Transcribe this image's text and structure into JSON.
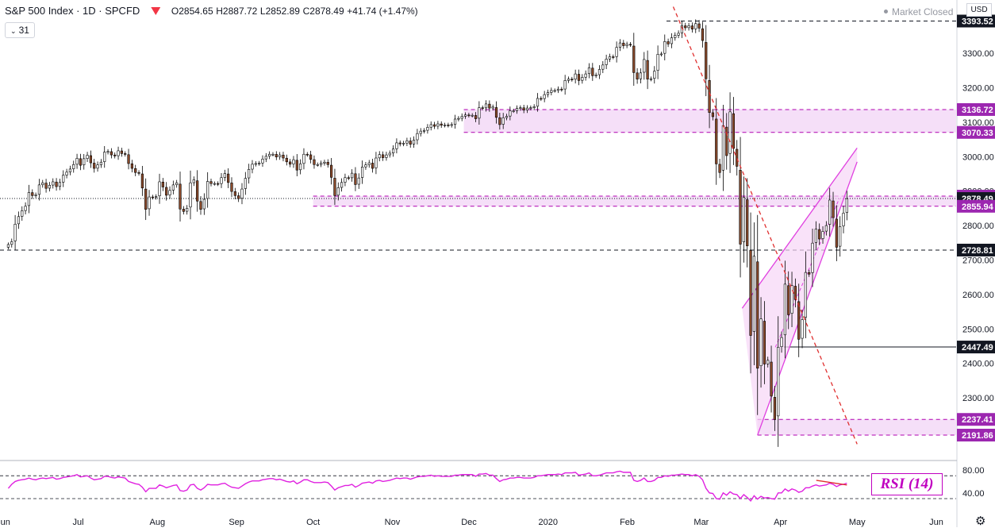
{
  "header": {
    "symbol": "S&P 500 Index · 1D · SPCFD",
    "open": "O2854.65",
    "high": "H2887.72",
    "low": "L2852.89",
    "close": "C2878.49",
    "change": "+41.74 (+1.47%)",
    "interval": "31",
    "market_status": "Market Closed",
    "currency": "USD",
    "flag_color": "#f23645"
  },
  "colors": {
    "up_candle": "#ffffff",
    "down_candle": "#8b4a2b",
    "zone_fill": "#f3d9f7",
    "zone_border": "#b000b0",
    "channel": "#e040e0",
    "trend": "#e03030",
    "rsi_line": "#e020e0",
    "dark_label": "#131722",
    "magenta_label": "#9c27b0"
  },
  "chart_data": [
    {
      "type": "candlestick",
      "title": "S&P 500 Index",
      "ylim": [
        2170,
        3420
      ],
      "y_ticks": [
        2200,
        2300,
        2400,
        2500,
        2600,
        2700,
        2800,
        2900,
        3000,
        3100,
        3200,
        3300
      ],
      "y_tick_labels": [
        "2200.00",
        "2300.00",
        "2400.00",
        "2500.00",
        "2600.00",
        "2700.00",
        "2800.00",
        "2900.00",
        "3000.00",
        "3100.00",
        "3200.00",
        "3300.00"
      ],
      "x_labels": [
        "Jun",
        "Jul",
        "Aug",
        "Sep",
        "Oct",
        "Nov",
        "Dec",
        "2020",
        "Feb",
        "Mar",
        "Apr",
        "May",
        "Jun"
      ],
      "closes": [
        2745,
        2753,
        2804,
        2826,
        2843,
        2856,
        2896,
        2887,
        2889,
        2918,
        2924,
        2908,
        2917,
        2927,
        2913,
        2925,
        2946,
        2955,
        2964,
        2977,
        2995,
        2975,
        2994,
        3004,
        2982,
        2966,
        2976,
        2984,
        3013,
        3015,
        3005,
        3002,
        3017,
        3009,
        3007,
        2980,
        2966,
        2954,
        2952,
        2909,
        2847,
        2883,
        2882,
        2884,
        2927,
        2912,
        2888,
        2902,
        2918,
        2924,
        2848,
        2841,
        2850,
        2924,
        2933,
        2871,
        2847,
        2876,
        2928,
        2922,
        2922,
        2921,
        2939,
        2951,
        2925,
        2899,
        2887,
        2878,
        2906,
        2937,
        2963,
        2978,
        2980,
        2981,
        2993,
        3001,
        3007,
        3007,
        2999,
        3005,
        2996,
        2985,
        2978,
        2991,
        2961,
        2979,
        3007,
        3006,
        2992,
        2977,
        2977,
        2981,
        2984,
        2977,
        2940,
        2887,
        2910,
        2925,
        2939,
        2938,
        2952,
        2919,
        2938,
        2970,
        2976,
        2982,
        2966,
        2996,
        3006,
        2997,
        3005,
        3010,
        3022,
        3040,
        3037,
        3039,
        3046,
        3036,
        3048,
        3067,
        3074,
        3076,
        3085,
        3093,
        3088,
        3095,
        3091,
        3092,
        3091,
        3093,
        3109,
        3111,
        3117,
        3121,
        3120,
        3120,
        3110,
        3142,
        3141,
        3153,
        3141,
        3144,
        3114,
        3093,
        3113,
        3117,
        3133,
        3133,
        3140,
        3142,
        3135,
        3141,
        3142,
        3145,
        3169,
        3168,
        3180,
        3186,
        3192,
        3192,
        3196,
        3195,
        3221,
        3225,
        3224,
        3240,
        3221,
        3230,
        3240,
        3258,
        3235,
        3237,
        3253,
        3266,
        3283,
        3290,
        3289,
        3317,
        3330,
        3322,
        3326,
        3325,
        3244,
        3225,
        3243,
        3282,
        3225,
        3226,
        3248,
        3297,
        3298,
        3334,
        3327,
        3345,
        3352,
        3358,
        3380,
        3374,
        3380,
        3370,
        3386,
        3373,
        3337,
        3226,
        3128,
        3116,
        2979,
        2954,
        3090,
        3003,
        3130,
        3024,
        2972,
        2746,
        2882,
        2741,
        2481,
        2711,
        2386,
        2529,
        2398,
        2409,
        2305,
        2237,
        2447,
        2475,
        2630,
        2541,
        2626,
        2585,
        2470,
        2527,
        2664,
        2659,
        2749,
        2790,
        2761,
        2783,
        2800,
        2874,
        2823,
        2737,
        2797,
        2836,
        2878
      ],
      "closes_date_range": [
        "2019-06-03",
        "2020-04-27"
      ],
      "horizontal_levels": [
        {
          "value": 3393.52,
          "label": "3393.52",
          "style": "dashed",
          "label_color": "#131722"
        },
        {
          "value": 3136.72,
          "label": "3136.72",
          "style": "dashed-zone",
          "label_color": "#9c27b0"
        },
        {
          "value": 3070.33,
          "label": "3070.33",
          "style": "dashed-zone",
          "label_color": "#9c27b0"
        },
        {
          "value": 2885.38,
          "label": "2885.38",
          "style": "dashed-zone",
          "label_color": "#9c27b0"
        },
        {
          "value": 2878.49,
          "label": "2878.49",
          "style": "last-price",
          "label_color": "#131722"
        },
        {
          "value": 2855.94,
          "label": "2855.94",
          "style": "dashed-zone",
          "label_color": "#9c27b0"
        },
        {
          "value": 2728.81,
          "label": "2728.81",
          "style": "dashed",
          "label_color": "#131722"
        },
        {
          "value": 2447.49,
          "label": "2447.49",
          "style": "solid",
          "label_color": "#131722"
        },
        {
          "value": 2237.41,
          "label": "2237.41",
          "style": "dashed-zone",
          "label_color": "#9c27b0"
        },
        {
          "value": 2191.86,
          "label": "2191.86",
          "style": "dashed-zone",
          "label_color": "#9c27b0"
        }
      ],
      "zones": [
        {
          "from": 3070.33,
          "to": 3136.72,
          "start": "2019-11-29"
        },
        {
          "from": 2855.94,
          "to": 2885.38,
          "start": "2019-10-01"
        },
        {
          "from": 2191.86,
          "to": 2237.41,
          "start": "2020-03-23"
        }
      ],
      "trendlines": [
        {
          "kind": "downtrend",
          "from": [
            "2020-02-19",
            3393.52
          ],
          "to": [
            "2020-05-01",
            2175
          ]
        },
        {
          "kind": "channel-upper",
          "from": [
            "2020-03-17",
            2560
          ],
          "to": [
            "2020-05-01",
            3025
          ]
        },
        {
          "kind": "channel-lower",
          "from": [
            "2020-03-23",
            2191.86
          ],
          "to": [
            "2020-05-01",
            2985
          ]
        }
      ]
    },
    {
      "type": "line",
      "title": "RSI (14)",
      "ylim": [
        25,
        90
      ],
      "y_ticks": [
        40,
        80
      ],
      "y_tick_labels": [
        "40.00",
        "80.00"
      ],
      "levels": [
        70,
        30
      ],
      "values": [
        48,
        55,
        60,
        62,
        63,
        64,
        66,
        64,
        63,
        65,
        66,
        65,
        66,
        67,
        64,
        65,
        67,
        68,
        69,
        70,
        72,
        68,
        69,
        70,
        66,
        63,
        64,
        65,
        69,
        69,
        67,
        66,
        68,
        67,
        66,
        60,
        58,
        56,
        55,
        50,
        42,
        48,
        48,
        48,
        54,
        52,
        49,
        51,
        53,
        54,
        44,
        43,
        45,
        54,
        55,
        48,
        45,
        49,
        55,
        54,
        54,
        54,
        56,
        57,
        53,
        50,
        49,
        48,
        52,
        56,
        59,
        61,
        61,
        61,
        63,
        64,
        65,
        65,
        63,
        64,
        62,
        60,
        59,
        61,
        56,
        59,
        63,
        63,
        60,
        58,
        58,
        58,
        59,
        58,
        52,
        45,
        49,
        51,
        53,
        53,
        55,
        50,
        53,
        57,
        58,
        59,
        57,
        61,
        62,
        60,
        61,
        62,
        64,
        66,
        65,
        66,
        66,
        64,
        66,
        68,
        69,
        69,
        70,
        71,
        69,
        70,
        69,
        69,
        69,
        69,
        71,
        71,
        72,
        72,
        72,
        72,
        69,
        73,
        73,
        74,
        71,
        71,
        65,
        60,
        63,
        64,
        66,
        66,
        67,
        67,
        66,
        66,
        66,
        67,
        70,
        70,
        71,
        72,
        72,
        72,
        73,
        72,
        75,
        75,
        75,
        76,
        71,
        72,
        73,
        75,
        70,
        70,
        71,
        73,
        75,
        75,
        75,
        77,
        78,
        76,
        76,
        76,
        62,
        60,
        62,
        66,
        60,
        60,
        62,
        67,
        67,
        70,
        69,
        71,
        71,
        72,
        73,
        72,
        72,
        70,
        72,
        69,
        63,
        48,
        40,
        39,
        30,
        29,
        40,
        36,
        42,
        38,
        37,
        30,
        37,
        32,
        26,
        35,
        29,
        34,
        31,
        32,
        30,
        29,
        40,
        40,
        47,
        43,
        47,
        45,
        41,
        43,
        49,
        49,
        52,
        54,
        52,
        53,
        54,
        57,
        55,
        51,
        54,
        55,
        57
      ],
      "annotation_arrow": {
        "from": [
          "2020-04-15",
          62
        ],
        "to": [
          "2020-04-27",
          58
        ]
      }
    }
  ]
}
